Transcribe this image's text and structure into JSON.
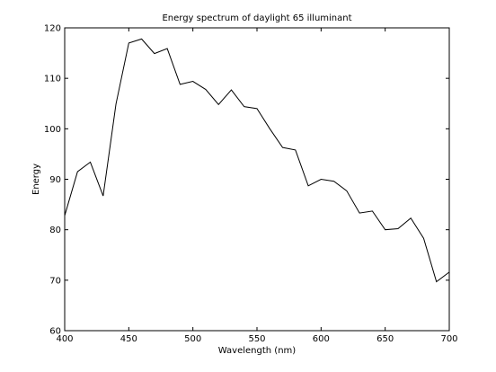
{
  "chart_data": {
    "type": "line",
    "title": "Energy spectrum of daylight 65 illuminant",
    "xlabel": "Wavelength (nm)",
    "ylabel": "Energy",
    "xlim": [
      400,
      700
    ],
    "ylim": [
      60,
      120
    ],
    "xticks": [
      400,
      450,
      500,
      550,
      600,
      650,
      700
    ],
    "yticks": [
      60,
      70,
      80,
      90,
      100,
      110,
      120
    ],
    "grid": false,
    "legend": "none",
    "colors": {
      "line": "#000000",
      "axes": "#000000",
      "background": "#ffffff"
    },
    "series": [
      {
        "x": [
          400,
          410,
          420,
          430,
          440,
          450,
          460,
          470,
          480,
          490,
          500,
          510,
          520,
          530,
          540,
          550,
          560,
          570,
          580,
          590,
          600,
          610,
          620,
          630,
          640,
          650,
          660,
          670,
          680,
          690,
          700
        ],
        "values": [
          82.8,
          91.5,
          93.4,
          86.7,
          104.9,
          117.0,
          117.8,
          114.9,
          115.9,
          108.8,
          109.4,
          107.8,
          104.8,
          107.7,
          104.4,
          104.0,
          100.0,
          96.3,
          95.8,
          88.7,
          90.0,
          89.6,
          87.7,
          83.3,
          83.7,
          80.0,
          80.2,
          82.3,
          78.3,
          69.7,
          71.6
        ]
      }
    ]
  }
}
